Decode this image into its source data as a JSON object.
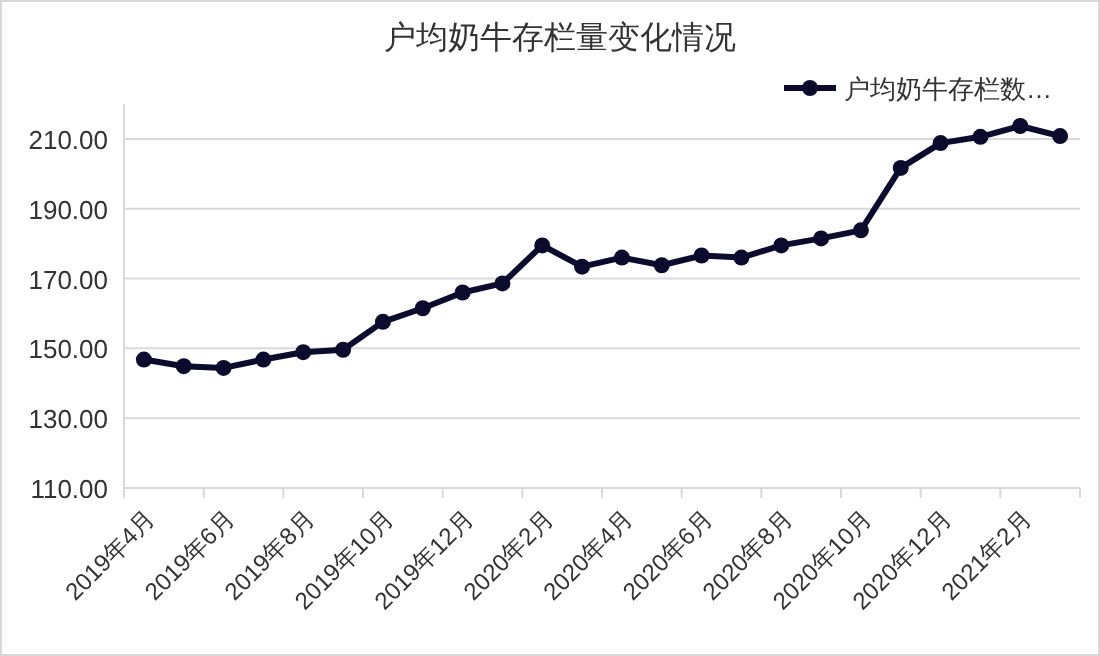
{
  "chart_data": {
    "type": "line",
    "title": "户均奶牛存栏量变化情况",
    "categories": [
      "2019年4月",
      null,
      "2019年6月",
      null,
      "2019年8月",
      null,
      "2019年10月",
      null,
      "2019年12月",
      null,
      "2020年2月",
      null,
      "2020年4月",
      null,
      "2020年6月",
      null,
      "2020年8月",
      null,
      "2020年10月",
      null,
      "2020年12月",
      null,
      "2021年2月",
      null
    ],
    "series": [
      {
        "name": "户均奶牛存栏数…",
        "color": "#0b0b2e",
        "values": [
          146.8,
          144.9,
          144.4,
          146.8,
          148.9,
          149.6,
          157.6,
          161.5,
          166,
          168.6,
          179.5,
          173.4,
          176,
          173.8,
          176.6,
          176,
          179.5,
          181.5,
          183.8,
          201.7,
          208.8,
          210.6,
          213.7,
          210.8
        ]
      }
    ],
    "ylim": [
      110,
      220
    ],
    "yticks": [
      {
        "value": 110,
        "label": "110.00"
      },
      {
        "value": 130,
        "label": "130.00"
      },
      {
        "value": 150,
        "label": "150.00"
      },
      {
        "value": 170,
        "label": "170.00"
      },
      {
        "value": 190,
        "label": "190.00"
      },
      {
        "value": 210,
        "label": "210.00"
      }
    ],
    "grid": "y",
    "legend": "top right",
    "marker": "circle",
    "line_style": "solid"
  }
}
